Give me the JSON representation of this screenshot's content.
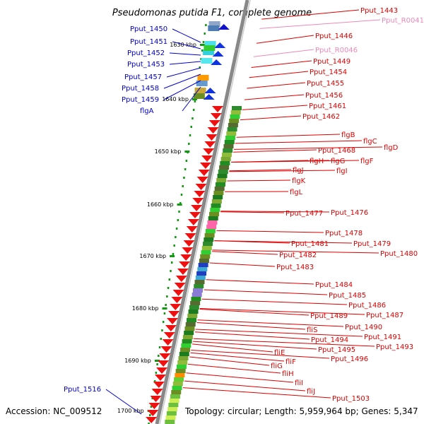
{
  "title": "Pseudomonas putida F1, complete genome",
  "footer": {
    "accession": "Accession: NC_009512",
    "topology": "Topology: circular; Length: 5,959,964 bp; Genes: 5,347"
  },
  "colors": {
    "forward_label": "#0000cc",
    "reverse_label": "#dd0000",
    "rna_label": "#ee88bb",
    "ruler": "#119911",
    "backbone": "#888888"
  },
  "ticks": [
    "1630 kbp",
    "1640 kbp",
    "1650 kbp",
    "1660 kbp",
    "1670 kbp",
    "1680 kbp",
    "1690 kbp",
    "1700 kbp"
  ],
  "forward_labels": [
    "Pput_1450",
    "Pput_1451",
    "Pput_1452",
    "Pput_1453",
    "Pput_1457",
    "Pput_1458",
    "Pput_1459",
    "flgA",
    "Pput_1516"
  ],
  "reverse_labels": [
    "Pput_1443",
    "Pput_R0041",
    "Pput_1446",
    "Pput_R0046",
    "Pput_1449",
    "Pput_1454",
    "Pput_1455",
    "Pput_1456",
    "Pput_1461",
    "Pput_1462",
    "flgB",
    "flgC",
    "flgD",
    "Pput_1468",
    "flgH",
    "flgG",
    "flgF",
    "flgJ",
    "flgI",
    "flgK",
    "flgL",
    "Pput_1477",
    "Pput_1476",
    "Pput_1478",
    "Pput_1481",
    "Pput_1479",
    "Pput_1480",
    "Pput_1482",
    "Pput_1483",
    "Pput_1484",
    "Pput_1485",
    "Pput_1486",
    "Pput_1487",
    "Pput_1489",
    "Pput_1490",
    "fliS",
    "Pput_1491",
    "Pput_1494",
    "Pput_1493",
    "Pput_1495",
    "fliE",
    "Pput_1496",
    "fliF",
    "fliG",
    "fliH",
    "fliI",
    "fliJ",
    "Pput_1503"
  ]
}
